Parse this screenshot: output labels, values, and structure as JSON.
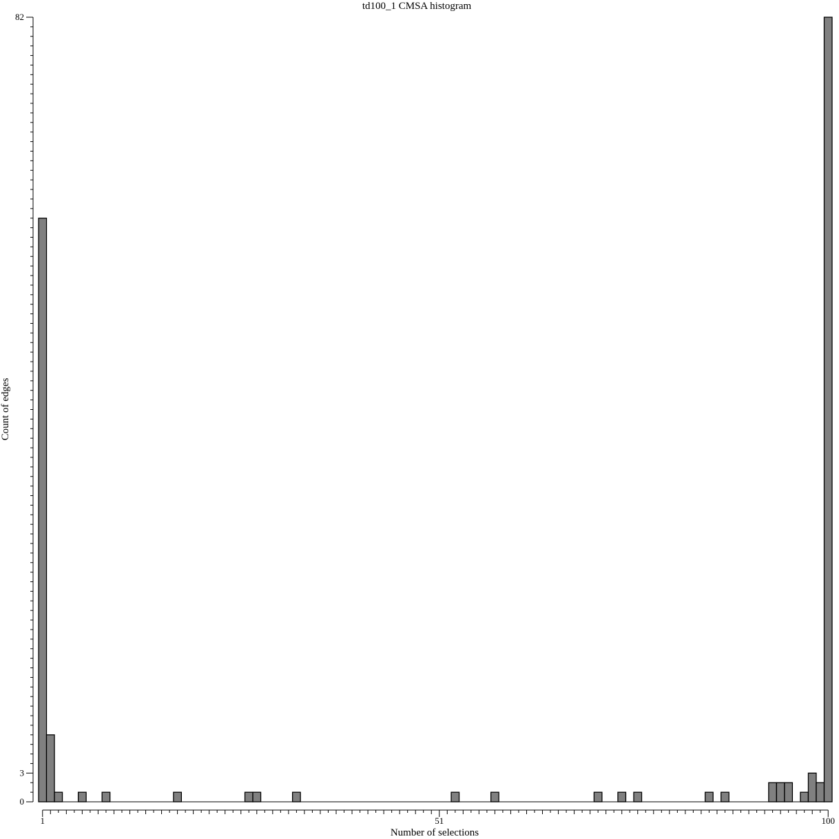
{
  "colors": {
    "bar_fill": "#808080",
    "bar_stroke": "#000000",
    "axis": "#000000"
  },
  "chart_data": {
    "type": "bar",
    "title": "td100_1 CMSA histogram",
    "xlabel": "Number of selections",
    "ylabel": "Count of edges",
    "xlim": [
      1,
      100
    ],
    "ylim": [
      0,
      82
    ],
    "x_ticklabels": [
      "1",
      "51",
      "100"
    ],
    "y_ticklabels": [
      "0",
      "3",
      "82"
    ],
    "grid": false,
    "legend": "none",
    "bins": [
      1,
      2,
      3,
      4,
      5,
      6,
      7,
      8,
      9,
      10,
      11,
      12,
      13,
      14,
      15,
      16,
      17,
      18,
      19,
      20,
      21,
      22,
      23,
      24,
      25,
      26,
      27,
      28,
      29,
      30,
      31,
      32,
      33,
      34,
      35,
      36,
      37,
      38,
      39,
      40,
      41,
      42,
      43,
      44,
      45,
      46,
      47,
      48,
      49,
      50,
      51,
      52,
      53,
      54,
      55,
      56,
      57,
      58,
      59,
      60,
      61,
      62,
      63,
      64,
      65,
      66,
      67,
      68,
      69,
      70,
      71,
      72,
      73,
      74,
      75,
      76,
      77,
      78,
      79,
      80,
      81,
      82,
      83,
      84,
      85,
      86,
      87,
      88,
      89,
      90,
      91,
      92,
      93,
      94,
      95,
      96,
      97,
      98,
      99,
      100
    ],
    "values": [
      61,
      7,
      1,
      0,
      0,
      1,
      0,
      0,
      1,
      0,
      0,
      0,
      0,
      0,
      0,
      0,
      0,
      1,
      0,
      0,
      0,
      0,
      0,
      0,
      0,
      0,
      1,
      1,
      0,
      0,
      0,
      0,
      1,
      0,
      0,
      0,
      0,
      0,
      0,
      0,
      0,
      0,
      0,
      0,
      0,
      0,
      0,
      0,
      0,
      0,
      0,
      0,
      1,
      0,
      0,
      0,
      0,
      1,
      0,
      0,
      0,
      0,
      0,
      0,
      0,
      0,
      0,
      0,
      0,
      0,
      1,
      0,
      0,
      1,
      0,
      1,
      0,
      0,
      0,
      0,
      0,
      0,
      0,
      0,
      1,
      0,
      1,
      0,
      0,
      0,
      0,
      0,
      2,
      2,
      2,
      0,
      1,
      3,
      2,
      82
    ]
  }
}
